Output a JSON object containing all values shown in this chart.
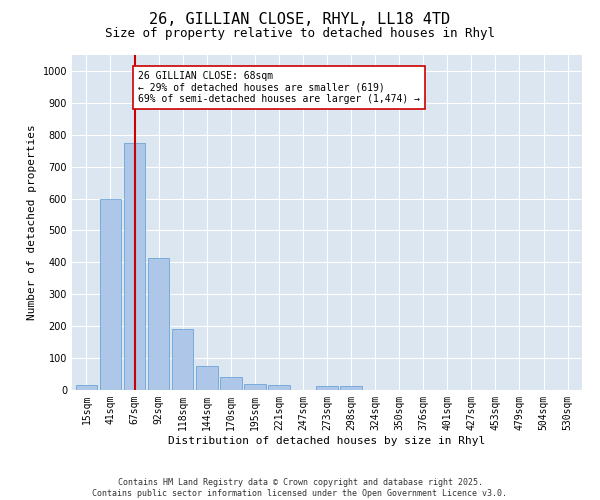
{
  "title1": "26, GILLIAN CLOSE, RHYL, LL18 4TD",
  "title2": "Size of property relative to detached houses in Rhyl",
  "xlabel": "Distribution of detached houses by size in Rhyl",
  "ylabel": "Number of detached properties",
  "categories": [
    "15sqm",
    "41sqm",
    "67sqm",
    "92sqm",
    "118sqm",
    "144sqm",
    "170sqm",
    "195sqm",
    "221sqm",
    "247sqm",
    "273sqm",
    "298sqm",
    "324sqm",
    "350sqm",
    "376sqm",
    "401sqm",
    "427sqm",
    "453sqm",
    "479sqm",
    "504sqm",
    "530sqm"
  ],
  "values": [
    15,
    600,
    775,
    415,
    190,
    75,
    40,
    20,
    15,
    0,
    12,
    12,
    0,
    0,
    0,
    0,
    0,
    0,
    0,
    0,
    0
  ],
  "bar_color": "#aec6e8",
  "bar_edge_color": "#5b9bd5",
  "vline_x": 2,
  "vline_color": "#cc0000",
  "annotation_text": "26 GILLIAN CLOSE: 68sqm\n← 29% of detached houses are smaller (619)\n69% of semi-detached houses are larger (1,474) →",
  "annotation_box_color": "#ffffff",
  "annotation_box_edge": "#cc0000",
  "ylim": [
    0,
    1050
  ],
  "yticks": [
    0,
    100,
    200,
    300,
    400,
    500,
    600,
    700,
    800,
    900,
    1000
  ],
  "background_color": "#ffffff",
  "plot_bg_color": "#dce6f1",
  "grid_color": "#ffffff",
  "footer": "Contains HM Land Registry data © Crown copyright and database right 2025.\nContains public sector information licensed under the Open Government Licence v3.0.",
  "title1_fontsize": 11,
  "title2_fontsize": 9,
  "tick_fontsize": 7,
  "axis_label_fontsize": 8,
  "annotation_fontsize": 7,
  "footer_fontsize": 6
}
